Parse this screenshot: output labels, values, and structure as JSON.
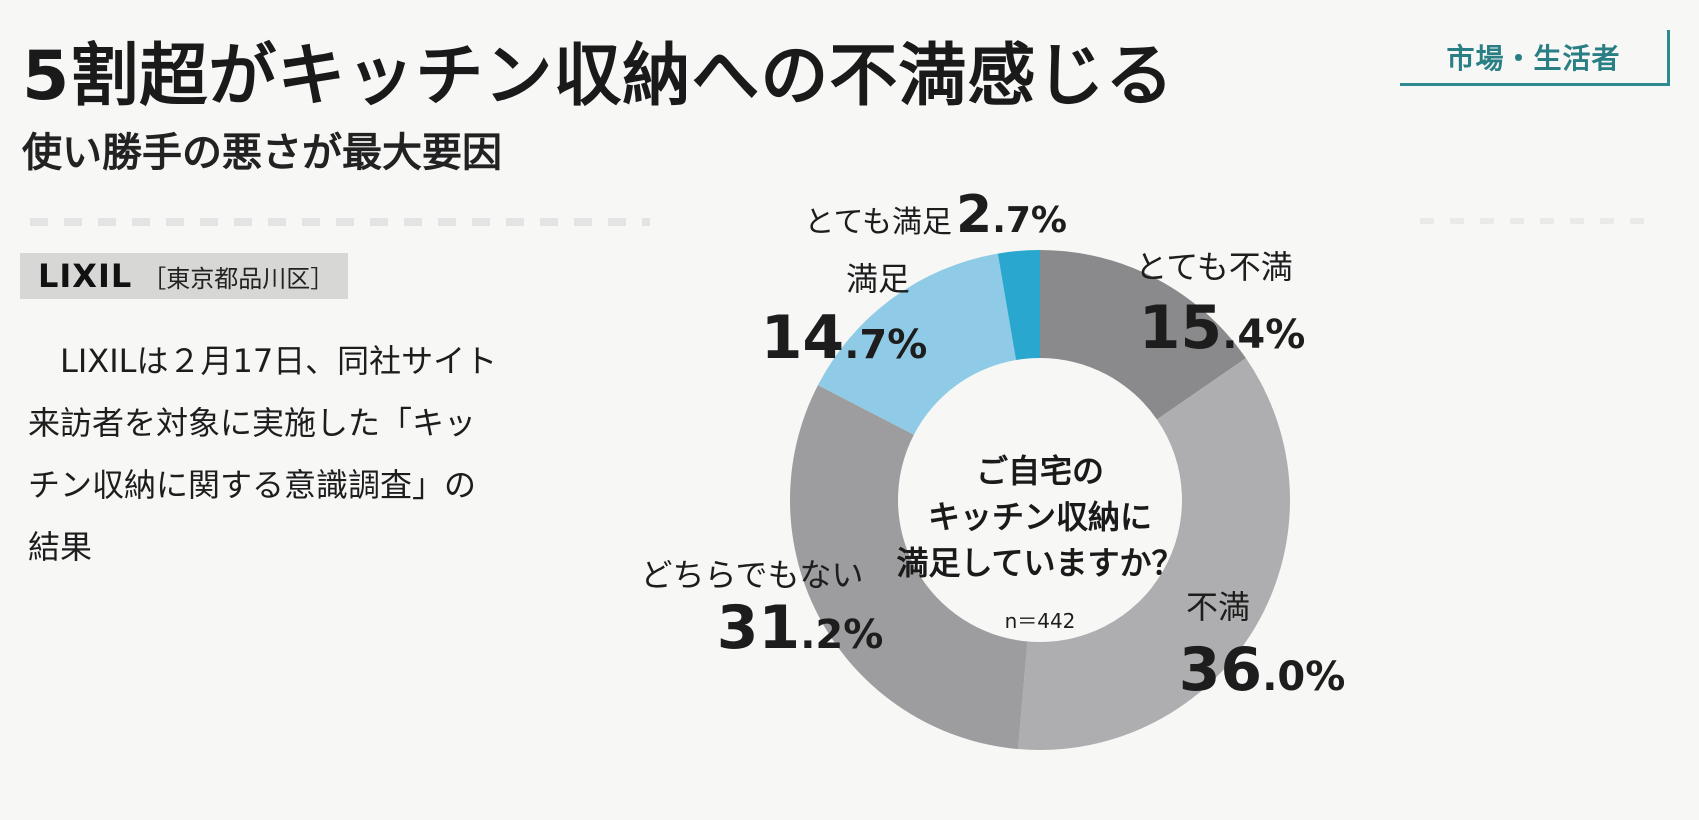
{
  "headline": "5割超がキッチン収納への不満感じる",
  "subheadline": "使い勝手の悪さが最大要因",
  "category": "市場・生活者",
  "company": {
    "name": "LIXIL",
    "location": "［東京都品川区］"
  },
  "body": {
    "line1": "LIXILは２月17日、同社サイト",
    "line2": "来訪者を対象に実施した「キッ",
    "line3": "チン収納に関する意識調査」の",
    "line4": "結果"
  },
  "chart_data": {
    "type": "pie",
    "subtype": "donut",
    "title": "ご自宅のキッチン収納に満足していますか？",
    "title_lines": [
      "ご自宅の",
      "キッチン収納に",
      "満足していますか？"
    ],
    "sample_note": "n＝442",
    "unit": "%",
    "slices": [
      {
        "label": "とても不満",
        "value": 15.4,
        "int": "15",
        "dec": ".4",
        "color": "#8a8a8c"
      },
      {
        "label": "不満",
        "value": 36.0,
        "int": "36",
        "dec": ".0",
        "color": "#aeaeb1"
      },
      {
        "label": "どちらでもない",
        "value": 31.2,
        "int": "31",
        "dec": ".2",
        "color": "#9d9da0"
      },
      {
        "label": "満足",
        "value": 14.7,
        "int": "14",
        "dec": ".7",
        "color": "#8fcbe6"
      },
      {
        "label": "とても満足",
        "value": 2.7,
        "int": "2",
        "dec": ".7",
        "color": "#2aa7cf"
      }
    ],
    "start": "12 o'clock",
    "direction": "clockwise"
  }
}
